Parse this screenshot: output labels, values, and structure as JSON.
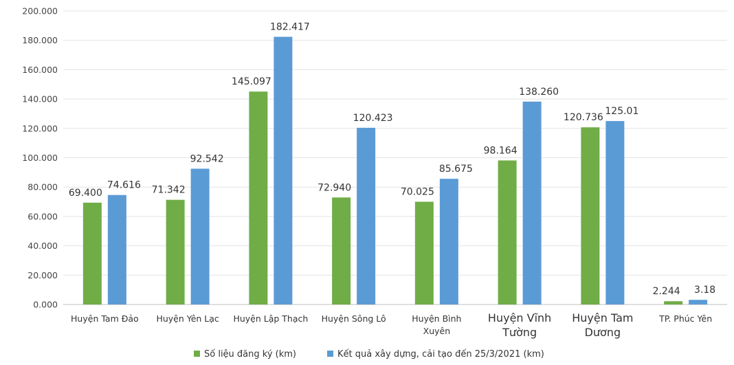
{
  "chart_data": {
    "type": "bar",
    "title": "",
    "xlabel": "",
    "ylabel": "",
    "ylim": [
      0,
      200
    ],
    "yticks": [
      "0.000",
      "20.000",
      "40.000",
      "60.000",
      "80.000",
      "100.000",
      "120.000",
      "140.000",
      "160.000",
      "180.000",
      "200.000"
    ],
    "grid": "horizontal",
    "legend": "bottom",
    "categories": [
      [
        "Huyện Tam Đảo"
      ],
      [
        "Huyện Yên Lạc"
      ],
      [
        "Huyện Lập Thạch"
      ],
      [
        "Huyện Sông Lô"
      ],
      [
        "Huyện Bình",
        "Xuyên"
      ],
      [
        "Huyện Vĩnh",
        "Tường"
      ],
      [
        "Huyện Tam",
        "Dương"
      ],
      [
        "TP. Phúc Yên"
      ]
    ],
    "series": [
      {
        "name": "Số liệu đăng ký (km)",
        "color": "#70AD47",
        "values": [
          69.4,
          71.342,
          145.097,
          72.94,
          70.025,
          98.164,
          120.736,
          2.244
        ],
        "labels": [
          "69.400",
          "71.342",
          "145.097",
          "72.940",
          "70.025",
          "98.164",
          "120.736",
          "2.244"
        ]
      },
      {
        "name": "Kết quả xây dựng, cải tạo đến 25/3/2021 (km)",
        "color": "#5B9BD5",
        "values": [
          74.616,
          92.542,
          182.417,
          120.423,
          85.675,
          138.26,
          125.01,
          3.18
        ],
        "labels": [
          "74.616",
          "92.542",
          "182.417",
          "120.423",
          "85.675",
          "138.260",
          "125.01",
          "3.18"
        ]
      }
    ]
  }
}
